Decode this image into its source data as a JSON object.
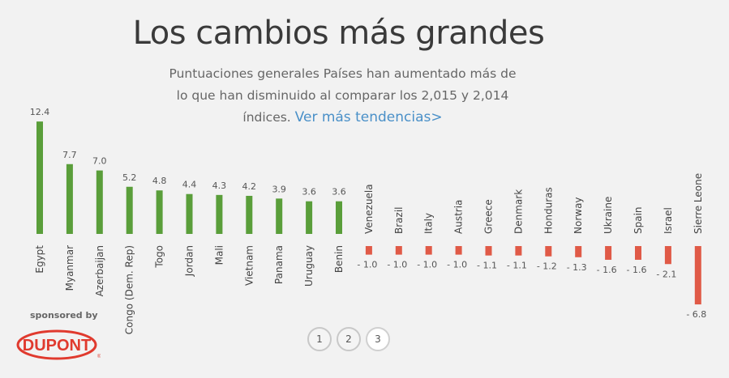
{
  "header": {
    "title": "Los cambios más grandes",
    "subtitle": "Puntuaciones generales Países han aumentado más de lo que han disminuido al comparar los 2,015 y 2,014 índices.",
    "link_text": "Ver más tendencias>"
  },
  "chart_data": {
    "type": "bar",
    "title": "Los cambios más grandes",
    "categories": [
      "Egypt",
      "Myanmar",
      "Azerbaijan",
      "Congo (Dem. Rep)",
      "Togo",
      "Jordan",
      "Mali",
      "Vietnam",
      "Panama",
      "Uruguay",
      "Benin",
      "Venezuela",
      "Brazil",
      "Italy",
      "Austria",
      "Greece",
      "Denmark",
      "Honduras",
      "Norway",
      "Ukraine",
      "Spain",
      "Israel",
      "Sierre Leone"
    ],
    "values": [
      12.4,
      7.7,
      7.0,
      5.2,
      4.8,
      4.4,
      4.3,
      4.2,
      3.9,
      3.6,
      3.6,
      -1.0,
      -1.0,
      -1.0,
      -1.0,
      -1.1,
      -1.1,
      -1.2,
      -1.3,
      -1.6,
      -1.6,
      -2.1,
      -6.8
    ],
    "value_labels": [
      "12.4",
      "7.7",
      "7.0",
      "5.2",
      "4.8",
      "4.4",
      "4.3",
      "4.2",
      "3.9",
      "3.6",
      "3.6",
      "- 1.0",
      "- 1.0",
      "- 1.0",
      "- 1.0",
      "- 1.1",
      "- 1.1",
      "- 1.2",
      "- 1.3",
      "- 1.6",
      "- 1.6",
      "- 2.1",
      "- 6.8"
    ],
    "colors": {
      "positive": "#5a9e3a",
      "negative": "#e05a47"
    },
    "grid": false,
    "legend": "none"
  },
  "sponsor": {
    "label": "sponsored by",
    "logo_text": "DUPONT"
  },
  "pagination": {
    "pages": [
      "1",
      "2",
      "3"
    ],
    "active": 2
  }
}
